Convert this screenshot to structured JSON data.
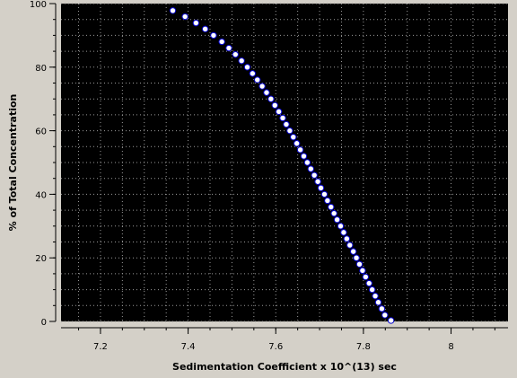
{
  "chart_data": {
    "type": "scatter",
    "title": "",
    "xlabel": "Sedimentation Coefficient x 10^(13) sec",
    "ylabel": "% of Total Concentration",
    "xlim": [
      7.11,
      8.13
    ],
    "ylim": [
      0,
      100
    ],
    "x_ticks": [
      7.2,
      7.4,
      7.6,
      7.8,
      8
    ],
    "x_tick_labels": [
      "7.2",
      "7.4",
      "7.6",
      "7.8",
      "8"
    ],
    "y_ticks": [
      0,
      20,
      40,
      60,
      80,
      100
    ],
    "y_tick_labels": [
      "0",
      "20",
      "40",
      "60",
      "80",
      "100"
    ],
    "grid": true,
    "colors": {
      "plot_background": "#000000",
      "panel_background": "#d4d0c8",
      "marker_fill": "#ffffff",
      "marker_edge": "#0000cc",
      "grid": "#9a9a9a"
    },
    "series": [
      {
        "points": [
          [
            7.365,
            97.8
          ],
          [
            7.393,
            95.9
          ],
          [
            7.418,
            93.9
          ],
          [
            7.439,
            92.0
          ],
          [
            7.458,
            90.0
          ],
          [
            7.477,
            88.0
          ],
          [
            7.493,
            86.0
          ],
          [
            7.508,
            84.0
          ],
          [
            7.522,
            82.0
          ],
          [
            7.535,
            80.0
          ],
          [
            7.547,
            78.0
          ],
          [
            7.558,
            76.0
          ],
          [
            7.569,
            74.0
          ],
          [
            7.579,
            72.0
          ],
          [
            7.589,
            70.0
          ],
          [
            7.598,
            68.0
          ],
          [
            7.607,
            66.0
          ],
          [
            7.616,
            64.0
          ],
          [
            7.624,
            62.0
          ],
          [
            7.632,
            60.0
          ],
          [
            7.64,
            58.0
          ],
          [
            7.648,
            56.0
          ],
          [
            7.656,
            54.0
          ],
          [
            7.664,
            52.0
          ],
          [
            7.672,
            50.0
          ],
          [
            7.68,
            48.0
          ],
          [
            7.688,
            46.0
          ],
          [
            7.696,
            44.0
          ],
          [
            7.703,
            42.0
          ],
          [
            7.711,
            40.0
          ],
          [
            7.718,
            38.0
          ],
          [
            7.726,
            36.0
          ],
          [
            7.733,
            34.0
          ],
          [
            7.74,
            32.0
          ],
          [
            7.748,
            30.0
          ],
          [
            7.755,
            28.0
          ],
          [
            7.762,
            26.0
          ],
          [
            7.769,
            24.0
          ],
          [
            7.777,
            22.0
          ],
          [
            7.784,
            20.0
          ],
          [
            7.791,
            18.0
          ],
          [
            7.798,
            16.0
          ],
          [
            7.805,
            14.0
          ],
          [
            7.813,
            12.0
          ],
          [
            7.82,
            10.0
          ],
          [
            7.827,
            8.0
          ],
          [
            7.834,
            6.0
          ],
          [
            7.842,
            4.0
          ],
          [
            7.849,
            2.0
          ],
          [
            7.863,
            0.3
          ]
        ]
      }
    ]
  }
}
